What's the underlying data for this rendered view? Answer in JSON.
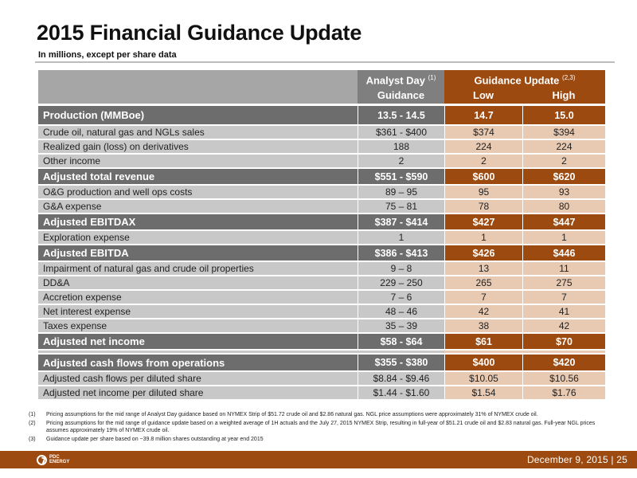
{
  "title": "2015 Financial Guidance Update",
  "subtitle": "In millions, except per share data",
  "header": {
    "analyst_day": "Analyst Day",
    "analyst_day_sup": "(1)",
    "analyst_day_sub": "Guidance",
    "guidance_update": "Guidance Update",
    "guidance_update_sup": "(2,3)",
    "low": "Low",
    "high": "High"
  },
  "rows": [
    {
      "label": "Production (MMBoe)",
      "analyst_day": "13.5 - 14.5",
      "low": "14.7",
      "high": "15.0",
      "bold": true
    },
    {
      "label": "Crude oil, natural gas and NGLs sales",
      "analyst_day": "$361 - $400",
      "low": "$374",
      "high": "$394",
      "bold": false
    },
    {
      "label": "Realized gain (loss) on derivatives",
      "analyst_day": "188",
      "low": "224",
      "high": "224",
      "bold": false
    },
    {
      "label": "Other income",
      "analyst_day": "2",
      "low": "2",
      "high": "2",
      "bold": false
    },
    {
      "label": "Adjusted total revenue",
      "analyst_day": "$551 - $590",
      "low": "$600",
      "high": "$620",
      "bold": true
    },
    {
      "label": "O&G production and well ops costs",
      "analyst_day": "89 – 95",
      "low": "95",
      "high": "93",
      "bold": false
    },
    {
      "label": "G&A  expense",
      "analyst_day": "75 – 81",
      "low": "78",
      "high": "80",
      "bold": false
    },
    {
      "label": "Adjusted EBITDAX",
      "analyst_day": "$387 - $414",
      "low": "$427",
      "high": "$447",
      "bold": true
    },
    {
      "label": "Exploration expense",
      "analyst_day": "1",
      "low": "1",
      "high": "1",
      "bold": false
    },
    {
      "label": "Adjusted EBITDA",
      "analyst_day": "$386 - $413",
      "low": "$426",
      "high": "$446",
      "bold": true
    },
    {
      "label": "Impairment of natural gas and crude oil properties",
      "analyst_day": "9 – 8",
      "low": "13",
      "high": "11",
      "bold": false
    },
    {
      "label": "DD&A",
      "analyst_day": "229 – 250",
      "low": "265",
      "high": "275",
      "bold": false
    },
    {
      "label": "Accretion expense",
      "analyst_day": "7 – 6",
      "low": "7",
      "high": "7",
      "bold": false
    },
    {
      "label": "Net interest expense",
      "analyst_day": "48 – 46",
      "low": "42",
      "high": "41",
      "bold": false
    },
    {
      "label": "Taxes expense",
      "analyst_day": "35 – 39",
      "low": "38",
      "high": "42",
      "bold": false
    },
    {
      "label": "Adjusted net income",
      "analyst_day": "$58 - $64",
      "low": "$61",
      "high": "$70",
      "bold": true
    },
    {
      "label": "Adjusted cash flows from operations",
      "analyst_day": "$355 - $380",
      "low": "$400",
      "high": "$420",
      "bold": true
    },
    {
      "label": "Adjusted cash flows per diluted share",
      "analyst_day": "$8.84 - $9.46",
      "low": "$10.05",
      "high": "$10.56",
      "bold": false
    },
    {
      "label": "Adjusted net income per diluted share",
      "analyst_day": "$1.44 - $1.60",
      "low": "$1.54",
      "high": "$1.76",
      "bold": false
    }
  ],
  "footnotes": [
    {
      "num": "(1)",
      "text": "Pricing assumptions for the mid range of Analyst Day guidance based on NYMEX Strip of $51.72 crude oil and $2.86 natural gas.  NGL price assumptions were approximately 31% of NYMEX crude oil."
    },
    {
      "num": "(2)",
      "text": "Pricing assumptions for the mid range of guidance update based on a weighted average of 1H actuals and the July 27, 2015 NYMEX Strip, resulting in full-year of $51.21 crude oil and $2.83 natural gas.  Full-year NGL prices assumes approximately 19% of NYMEX crude oil."
    },
    {
      "num": "(3)",
      "text": "Guidance update per share  based on ~39.8 million shares outstanding at year end 2015"
    }
  ],
  "footer": {
    "logo_line1": "PDC",
    "logo_line2": "ENERGY",
    "text": "December 9, 2015  |  25"
  },
  "colors": {
    "accent_orange": "#9c4a10",
    "dark_gray": "#6d6d6d",
    "light_gray": "#c8c8c8",
    "light_orange": "#e8c9b2"
  }
}
